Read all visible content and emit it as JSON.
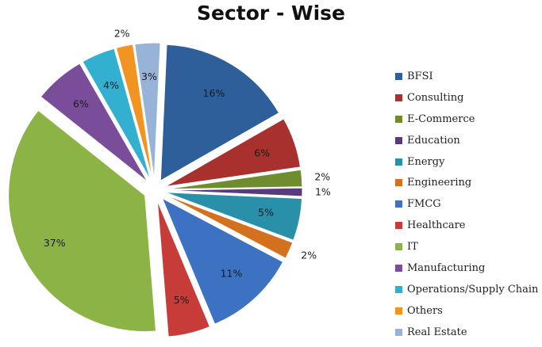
{
  "chart_data": {
    "type": "pie",
    "title": "Sector - Wise",
    "categories": [
      "BFSI",
      "Consulting",
      "E-Commerce",
      "Education",
      "Energy",
      "Engineering",
      "FMCG",
      "Healthcare",
      "IT",
      "Manufacturing",
      "Operations/Supply Chain",
      "Others",
      "Real Estate"
    ],
    "values": [
      16,
      6,
      2,
      1,
      5,
      2,
      11,
      5,
      37,
      6,
      4,
      2,
      3
    ],
    "labels": [
      "16%",
      "6%",
      "2%",
      "1%",
      "5%",
      "2%",
      "11%",
      "5%",
      "37%",
      "6%",
      "4%",
      "2%",
      "3%"
    ],
    "colors": [
      "#2e5f9a",
      "#a8312d",
      "#6f8c2e",
      "#5a3a7e",
      "#2a8fa8",
      "#d4711f",
      "#3d72c2",
      "#c73c39",
      "#8cb346",
      "#7a4d9a",
      "#33afcf",
      "#f29421",
      "#98b3d8"
    ],
    "exploded": true,
    "legend": "right"
  }
}
